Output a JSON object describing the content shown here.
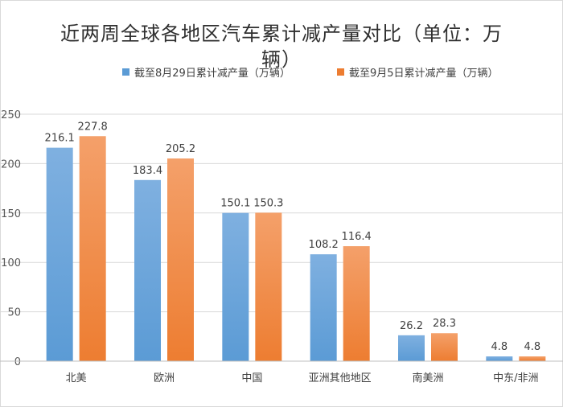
{
  "chart_data": {
    "type": "bar",
    "title": "近两周全球各地区汽车累计减产量对比（单位：万辆）",
    "categories": [
      "北美",
      "欧洲",
      "中国",
      "亚洲其他地区",
      "南美洲",
      "中东/非洲"
    ],
    "series": [
      {
        "name": "截至8月29日累计减产量（万辆）",
        "values": [
          216.1,
          183.4,
          150.1,
          108.2,
          26.2,
          4.8
        ],
        "color": "#5b9bd5",
        "color_light": "#7fb0e0"
      },
      {
        "name": "截至9月5日累计减产量（万辆）",
        "values": [
          227.8,
          205.2,
          150.3,
          116.4,
          28.3,
          4.8
        ],
        "color": "#ed7d31",
        "color_light": "#f4a06a"
      }
    ],
    "ylim": [
      0,
      250
    ],
    "yticks": [
      0,
      50,
      100,
      150,
      200,
      250
    ],
    "xlabel": "",
    "ylabel": "",
    "grid": true,
    "legend_position": "top"
  }
}
